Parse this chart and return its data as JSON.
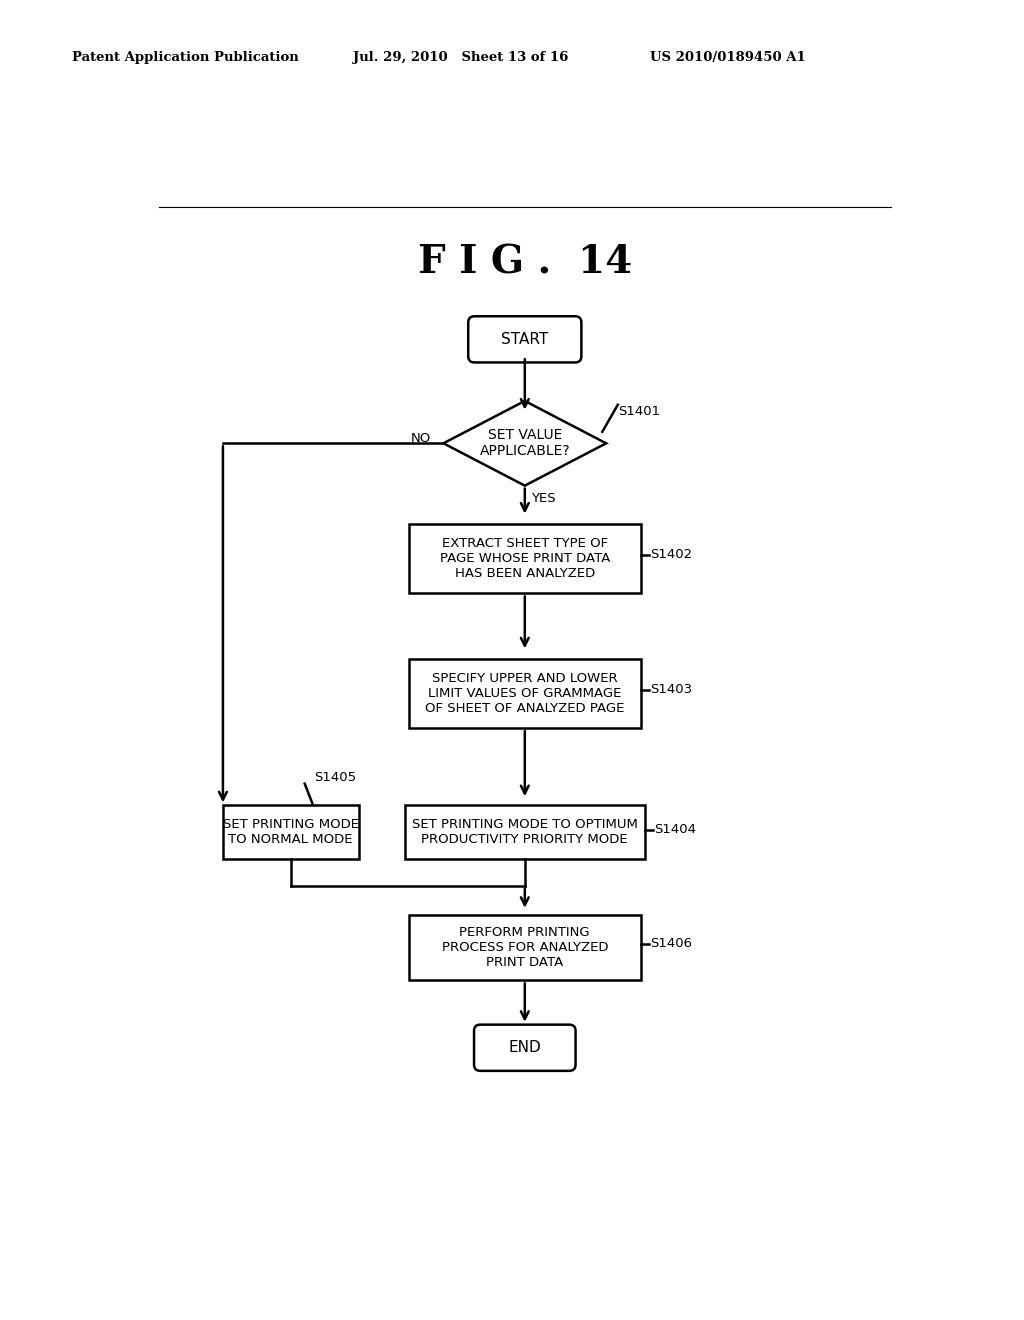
{
  "title": "F I G .  14",
  "header_left": "Patent Application Publication",
  "header_mid": "Jul. 29, 2010   Sheet 13 of 16",
  "header_right": "US 2010/0189450 A1",
  "bg_color": "#ffffff",
  "line_color": "#000000",
  "start_text": "START",
  "end_text": "END",
  "s1401_text": "SET VALUE\nAPPLICABLE?",
  "s1401_label": "S1401",
  "s1402_text": "EXTRACT SHEET TYPE OF\nPAGE WHOSE PRINT DATA\nHAS BEEN ANALYZED",
  "s1402_label": "S1402",
  "s1403_text": "SPECIFY UPPER AND LOWER\nLIMIT VALUES OF GRAMMAGE\nOF SHEET OF ANALYZED PAGE",
  "s1403_label": "S1403",
  "s1404_text": "SET PRINTING MODE TO OPTIMUM\nPRODUCTIVITY PRIORITY MODE",
  "s1404_label": "S1404",
  "s1405_text": "SET PRINTING MODE\nTO NORMAL MODE",
  "s1405_label": "S1405",
  "s1406_text": "PERFORM PRINTING\nPROCESS FOR ANALYZED\nPRINT DATA",
  "s1406_label": "S1406",
  "yes_label": "YES",
  "no_label": "NO"
}
